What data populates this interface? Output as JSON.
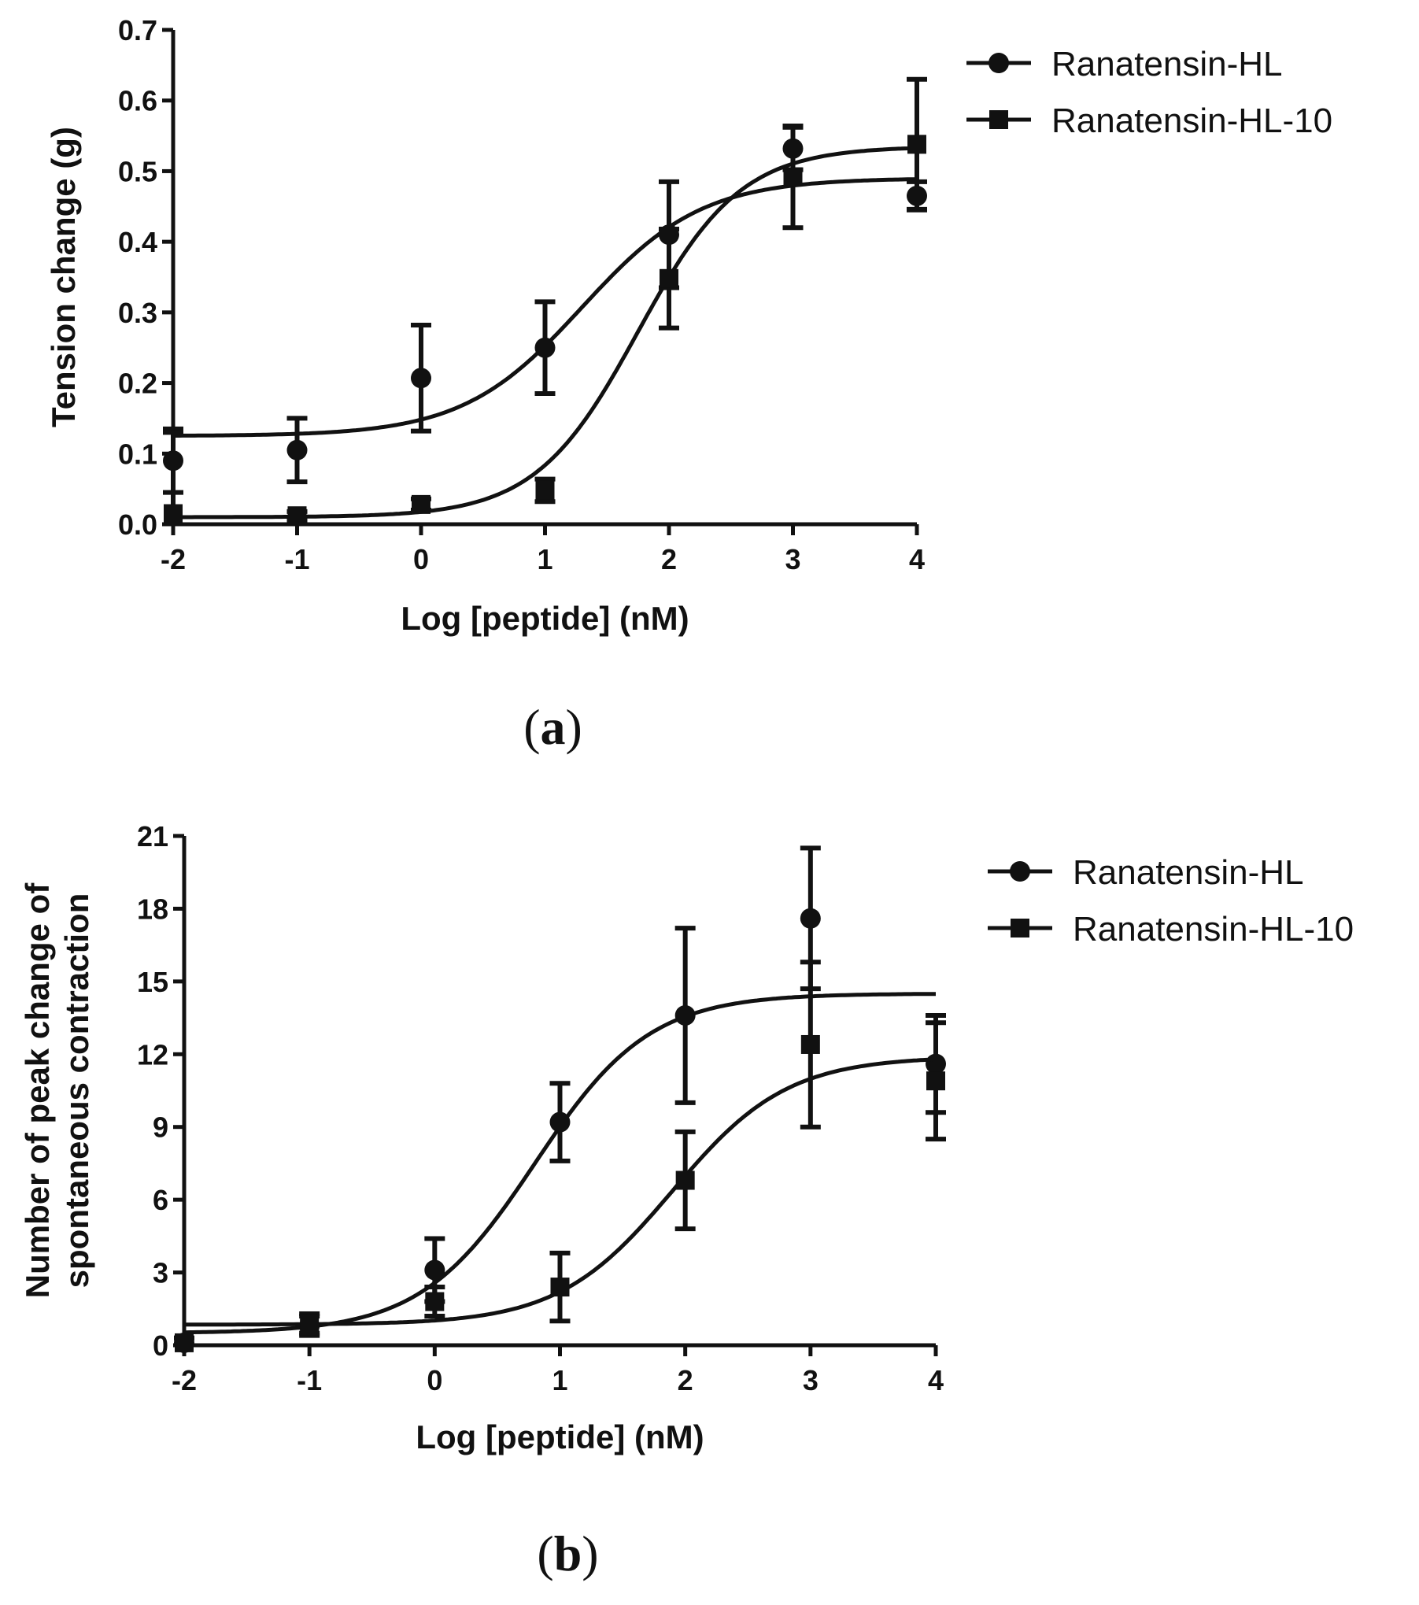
{
  "figure": {
    "panels": [
      "a",
      "b"
    ]
  },
  "chart_data": [
    {
      "type": "scatter",
      "panel_label": "a",
      "title": "",
      "xlabel": "Log [peptide] (nM)",
      "ylabel": "Tension change (g)",
      "xlim": [
        -2,
        4
      ],
      "ylim": [
        0.0,
        0.7
      ],
      "xticks": [
        "-2",
        "-1",
        "0",
        "1",
        "2",
        "3",
        "4"
      ],
      "yticks": [
        "0.0",
        "0.1",
        "0.2",
        "0.3",
        "0.4",
        "0.5",
        "0.6",
        "0.7"
      ],
      "x": [
        -2,
        -1,
        0,
        1,
        2,
        3,
        4
      ],
      "legend_position": "top-right",
      "series": [
        {
          "name": "Ranatensin-HL",
          "marker": "circle",
          "values": [
            0.09,
            0.105,
            0.207,
            0.25,
            0.41,
            0.532,
            0.465
          ],
          "errors": [
            0.045,
            0.045,
            0.075,
            0.065,
            0.075,
            0.03,
            0.02
          ],
          "fit": {
            "bottom": 0.125,
            "top": 0.49,
            "logEC50": 1.3,
            "hill": 0.9
          }
        },
        {
          "name": "Ranatensin-HL-10",
          "marker": "square",
          "values": [
            0.015,
            0.012,
            0.028,
            0.048,
            0.348,
            0.492,
            0.538
          ],
          "errors": [
            0.115,
            0.006,
            0.008,
            0.016,
            0.07,
            0.072,
            0.092
          ],
          "fit": {
            "bottom": 0.01,
            "top": 0.535,
            "logEC50": 1.75,
            "hill": 1.05
          }
        }
      ]
    },
    {
      "type": "scatter",
      "panel_label": "b",
      "title": "",
      "xlabel": "Log [peptide] (nM)",
      "ylabel": [
        "Number of peak change of",
        "spontaneous contraction"
      ],
      "xlim": [
        -2,
        4
      ],
      "ylim": [
        0,
        21
      ],
      "xticks": [
        "-2",
        "-1",
        "0",
        "1",
        "2",
        "3",
        "4"
      ],
      "yticks": [
        "0",
        "3",
        "6",
        "9",
        "12",
        "15",
        "18",
        "21"
      ],
      "x": [
        -2,
        -1,
        0,
        1,
        2,
        3,
        4
      ],
      "legend_position": "top-right",
      "series": [
        {
          "name": "Ranatensin-HL",
          "marker": "circle",
          "values": [
            0.1,
            0.8,
            3.1,
            9.2,
            13.6,
            17.6,
            11.6
          ],
          "errors": [
            0.2,
            0.4,
            1.3,
            1.6,
            3.6,
            2.9,
            2.0
          ],
          "fit": {
            "bottom": 0.5,
            "top": 14.5,
            "logEC50": 0.8,
            "hill": 0.95
          }
        },
        {
          "name": "Ranatensin-HL-10",
          "marker": "square",
          "values": [
            0.1,
            0.9,
            1.8,
            2.4,
            6.8,
            12.4,
            10.9
          ],
          "errors": [
            0.2,
            0.4,
            0.6,
            1.4,
            2.0,
            3.4,
            2.4
          ],
          "fit": {
            "bottom": 0.85,
            "top": 11.9,
            "logEC50": 1.9,
            "hill": 0.95
          }
        }
      ]
    }
  ]
}
